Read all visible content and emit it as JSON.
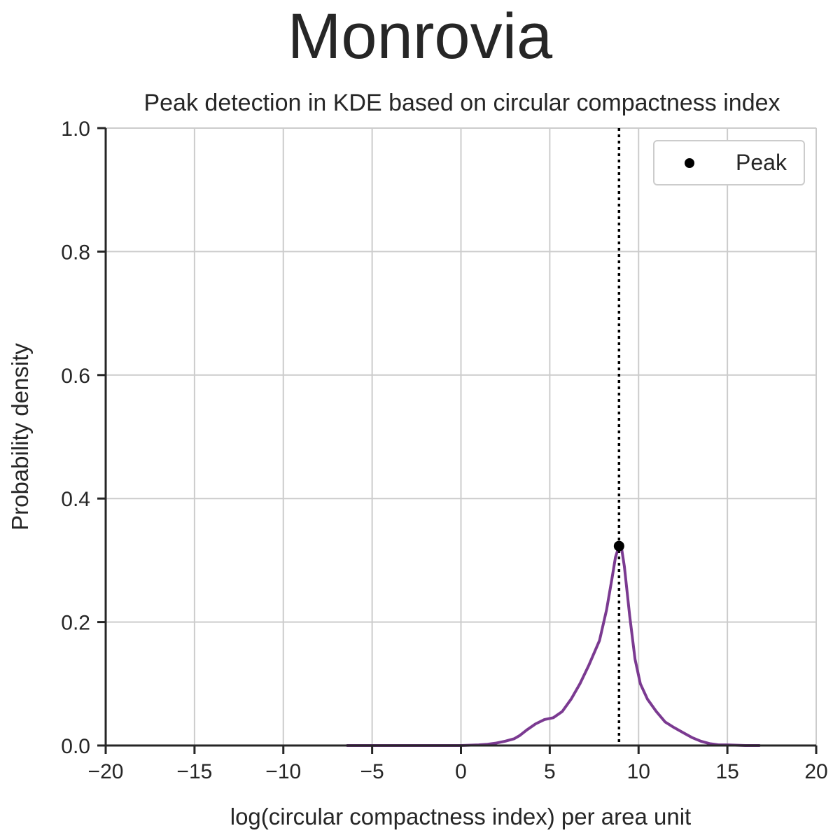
{
  "figure": {
    "suptitle": "Monrovia"
  },
  "chart_data": {
    "type": "line",
    "title": "Peak detection in KDE based on circular compactness index",
    "xlabel": "log(circular compactness index) per area unit",
    "ylabel": "Probability density",
    "xlim": [
      -20,
      20
    ],
    "ylim": [
      0,
      1.0
    ],
    "xticks": [
      -20,
      -15,
      -10,
      -5,
      0,
      5,
      10,
      15,
      20
    ],
    "xtick_labels": [
      "−20",
      "−15",
      "−10",
      "−5",
      "0",
      "5",
      "10",
      "15",
      "20"
    ],
    "yticks": [
      0,
      0.2,
      0.4,
      0.6,
      0.8,
      1.0
    ],
    "ytick_labels": [
      "0.0",
      "0.2",
      "0.4",
      "0.6",
      "0.8",
      "1.0"
    ],
    "grid": true,
    "legend_position": "top-right",
    "series": [
      {
        "kind": "line",
        "color": "#7b3a91",
        "x": [
          -6.4,
          -5,
          -3,
          -1,
          0,
          1,
          1.5,
          2,
          2.5,
          3,
          3.3,
          3.7,
          4.2,
          4.7,
          5.2,
          5.7,
          6.2,
          6.7,
          7.2,
          7.8,
          8.2,
          8.5,
          8.7,
          8.9,
          9.05,
          9.2,
          9.5,
          9.8,
          10.1,
          10.5,
          11.0,
          11.5,
          12.0,
          12.5,
          13.0,
          13.5,
          14.0,
          14.5,
          15.0,
          16.0,
          16.8
        ],
        "y": [
          0.0,
          0.0,
          0.0,
          0.0,
          0.0,
          0.001,
          0.002,
          0.004,
          0.007,
          0.011,
          0.016,
          0.025,
          0.035,
          0.042,
          0.045,
          0.055,
          0.075,
          0.1,
          0.13,
          0.17,
          0.22,
          0.27,
          0.305,
          0.323,
          0.318,
          0.29,
          0.21,
          0.14,
          0.1,
          0.075,
          0.055,
          0.038,
          0.029,
          0.021,
          0.013,
          0.007,
          0.003,
          0.001,
          0.001,
          0.0,
          0.0
        ]
      },
      {
        "kind": "scatter",
        "name": "Peak",
        "color": "#000000",
        "x": [
          8.9
        ],
        "y": [
          0.323
        ]
      },
      {
        "kind": "vline",
        "style": "dotted",
        "color": "#000000",
        "x": 8.9
      }
    ],
    "legend": [
      {
        "label": "Peak",
        "marker": "circle",
        "color": "#000000"
      }
    ]
  }
}
